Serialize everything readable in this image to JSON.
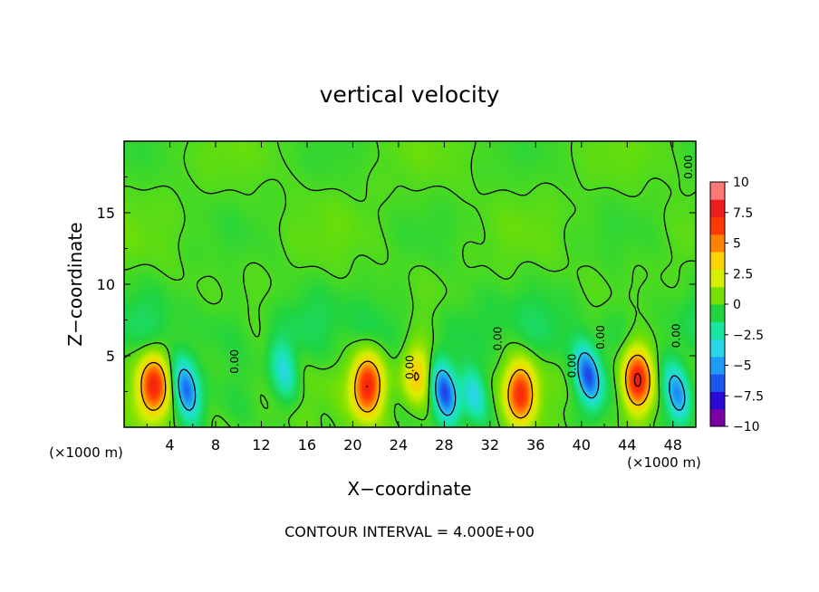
{
  "chart_data": {
    "type": "heatmap",
    "title": "vertical velocity",
    "xlabel": "X−coordinate",
    "ylabel": "Z−coordinate",
    "x_unit_left": "(×1000 m)",
    "x_unit_right": "(×1000 m)",
    "xlim": [
      0,
      50
    ],
    "ylim": [
      0,
      20
    ],
    "x_ticks": [
      4,
      8,
      12,
      16,
      20,
      24,
      28,
      32,
      36,
      40,
      44,
      48
    ],
    "x_tick_labels": [
      "4",
      "8",
      "12",
      "16",
      "20",
      "24",
      "28",
      "32",
      "36",
      "40",
      "44",
      "48"
    ],
    "y_ticks": [
      5,
      10,
      15
    ],
    "y_tick_labels": [
      "5",
      "10",
      "15"
    ],
    "colorbar": {
      "range": [
        -10,
        10
      ],
      "tick_values": [
        10,
        7.5,
        5,
        2.5,
        0,
        -2.5,
        -5,
        -7.5,
        -10
      ],
      "tick_labels": [
        "10",
        "7.5",
        "5",
        "2.5",
        "0",
        "−2.5",
        "−5",
        "−7.5",
        "−10"
      ],
      "colors": [
        "#7a00a6",
        "#2a0bd6",
        "#1a56ee",
        "#1e9bf5",
        "#2ad6e6",
        "#16e6a0",
        "#20d440",
        "#78e000",
        "#d6ee00",
        "#fcd200",
        "#ff8200",
        "#ff3a00",
        "#ee1c1c",
        "#ff7878"
      ]
    },
    "contour_interval_text": "CONTOUR INTERVAL = 4.000E+00",
    "contour_label": "0.00",
    "features": [
      {
        "kind": "updraft",
        "x": 2.6,
        "z": 2.9,
        "peak": 7.8
      },
      {
        "kind": "downdraft",
        "x": 5.4,
        "z": 2.6,
        "peak": -6.5
      },
      {
        "kind": "downdraft",
        "x": 14.0,
        "z": 4.0,
        "peak": -3.5
      },
      {
        "kind": "updraft",
        "x": 21.3,
        "z": 2.9,
        "peak": 8.2
      },
      {
        "kind": "updraft",
        "x": 25.6,
        "z": 3.6,
        "peak": 4.6
      },
      {
        "kind": "downdraft",
        "x": 28.0,
        "z": 2.4,
        "peak": -6.8
      },
      {
        "kind": "downdraft",
        "x": 30.6,
        "z": 2.3,
        "peak": -4.0
      },
      {
        "kind": "updraft",
        "x": 34.7,
        "z": 2.4,
        "peak": 7.2
      },
      {
        "kind": "downdraft",
        "x": 40.6,
        "z": 3.6,
        "peak": -7.0
      },
      {
        "kind": "updraft",
        "x": 44.9,
        "z": 3.3,
        "peak": 8.6
      },
      {
        "kind": "downdraft",
        "x": 48.4,
        "z": 2.3,
        "peak": -6.0
      }
    ]
  }
}
